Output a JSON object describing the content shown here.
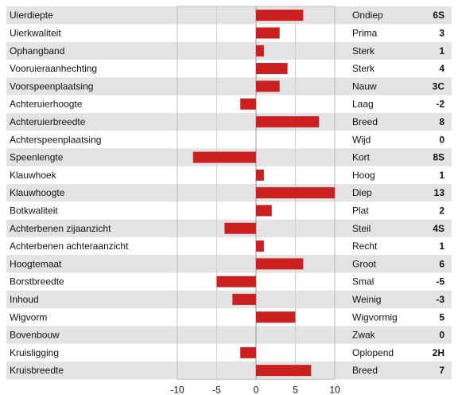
{
  "chart_data": {
    "type": "bar",
    "orientation": "horizontal",
    "xlim": [
      -10,
      10
    ],
    "x_ticks": [
      -10,
      -5,
      0,
      5,
      10
    ],
    "bar_color": "#cc1f1f",
    "stripe_color": "#e3e3e3",
    "grid": true,
    "rows": [
      {
        "trait": "Uierdiepte",
        "value": 6,
        "descriptor": "Ondiep",
        "score": "6S"
      },
      {
        "trait": "Uierkwaliteit",
        "value": 3,
        "descriptor": "Prima",
        "score": "3"
      },
      {
        "trait": "Ophangband",
        "value": 1,
        "descriptor": "Sterk",
        "score": "1"
      },
      {
        "trait": "Vooruieraanhechting",
        "value": 4,
        "descriptor": "Sterk",
        "score": "4"
      },
      {
        "trait": "Voorspeenplaatsing",
        "value": 3,
        "descriptor": "Nauw",
        "score": "3C"
      },
      {
        "trait": "Achteruierhoogte",
        "value": -2,
        "descriptor": "Laag",
        "score": "-2"
      },
      {
        "trait": "Achteruierbreedte",
        "value": 8,
        "descriptor": "Breed",
        "score": "8"
      },
      {
        "trait": "Achterspeenplaatsing",
        "value": 0,
        "descriptor": "Wijd",
        "score": "0"
      },
      {
        "trait": "Speenlengte",
        "value": -8,
        "descriptor": "Kort",
        "score": "8S"
      },
      {
        "trait": "Klauwhoek",
        "value": 1,
        "descriptor": "Hoog",
        "score": "1"
      },
      {
        "trait": "Klauwhoogte",
        "value": 13,
        "descriptor": "Diep",
        "score": "13"
      },
      {
        "trait": "Botkwaliteit",
        "value": 2,
        "descriptor": "Plat",
        "score": "2"
      },
      {
        "trait": "Achterbenen zijaanzicht",
        "value": -4,
        "descriptor": "Steil",
        "score": "4S"
      },
      {
        "trait": "Achterbenen achteraanzicht",
        "value": 1,
        "descriptor": "Recht",
        "score": "1"
      },
      {
        "trait": "Hoogtemaat",
        "value": 6,
        "descriptor": "Groot",
        "score": "6"
      },
      {
        "trait": "Borstbreedte",
        "value": -5,
        "descriptor": "Smal",
        "score": "-5"
      },
      {
        "trait": "Inhoud",
        "value": -3,
        "descriptor": "Weinig",
        "score": "-3"
      },
      {
        "trait": "Wigvorm",
        "value": 5,
        "descriptor": "Wigvormig",
        "score": "5"
      },
      {
        "trait": "Bovenbouw",
        "value": 0,
        "descriptor": "Zwak",
        "score": "0"
      },
      {
        "trait": "Kruisligging",
        "value": -2,
        "descriptor": "Oplopend",
        "score": "2H"
      },
      {
        "trait": "Kruisbreedte",
        "value": 7,
        "descriptor": "Breed",
        "score": "7"
      }
    ]
  }
}
